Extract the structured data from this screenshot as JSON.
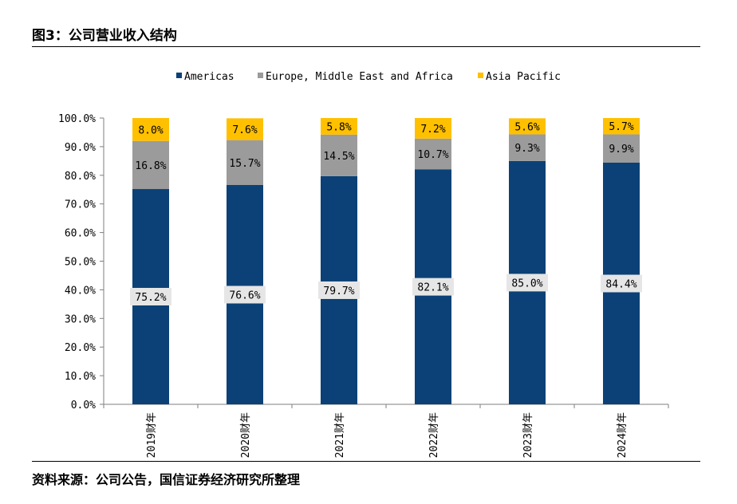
{
  "figure": {
    "title": "图3：公司营业收入结构",
    "source": "资料来源：公司公告，国信证券经济研究所整理"
  },
  "colors": {
    "americas": "#0b4176",
    "emea": "#9b9b9b",
    "apac": "#ffc000",
    "axis": "#7f7f7f",
    "label_box": "#e6e6e6"
  },
  "chart_data": {
    "type": "bar",
    "stacked": true,
    "categories": [
      "2019财年",
      "2020财年",
      "2021财年",
      "2022财年",
      "2023财年",
      "2024财年"
    ],
    "series": [
      {
        "name": "Americas",
        "values": [
          75.2,
          76.6,
          79.7,
          82.1,
          85.0,
          84.4
        ],
        "labels": [
          "75.2%",
          "76.6%",
          "79.7%",
          "82.1%",
          "85.0%",
          "84.4%"
        ]
      },
      {
        "name": "Europe, Middle East and Africa",
        "values": [
          16.8,
          15.7,
          14.5,
          10.7,
          9.3,
          9.9
        ],
        "labels": [
          "16.8%",
          "15.7%",
          "14.5%",
          "10.7%",
          "9.3%",
          "9.9%"
        ]
      },
      {
        "name": "Asia Pacific",
        "values": [
          8.0,
          7.6,
          5.8,
          7.2,
          5.6,
          5.7
        ],
        "labels": [
          "8.0%",
          "7.6%",
          "5.8%",
          "7.2%",
          "5.6%",
          "5.7%"
        ]
      }
    ],
    "ylim": [
      0,
      100
    ],
    "yticks": [
      0,
      10,
      20,
      30,
      40,
      50,
      60,
      70,
      80,
      90,
      100
    ],
    "ytick_labels": [
      "0.0%",
      "10.0%",
      "20.0%",
      "30.0%",
      "40.0%",
      "50.0%",
      "60.0%",
      "70.0%",
      "80.0%",
      "90.0%",
      "100.0%"
    ],
    "legend_position": "top",
    "grid": false
  }
}
